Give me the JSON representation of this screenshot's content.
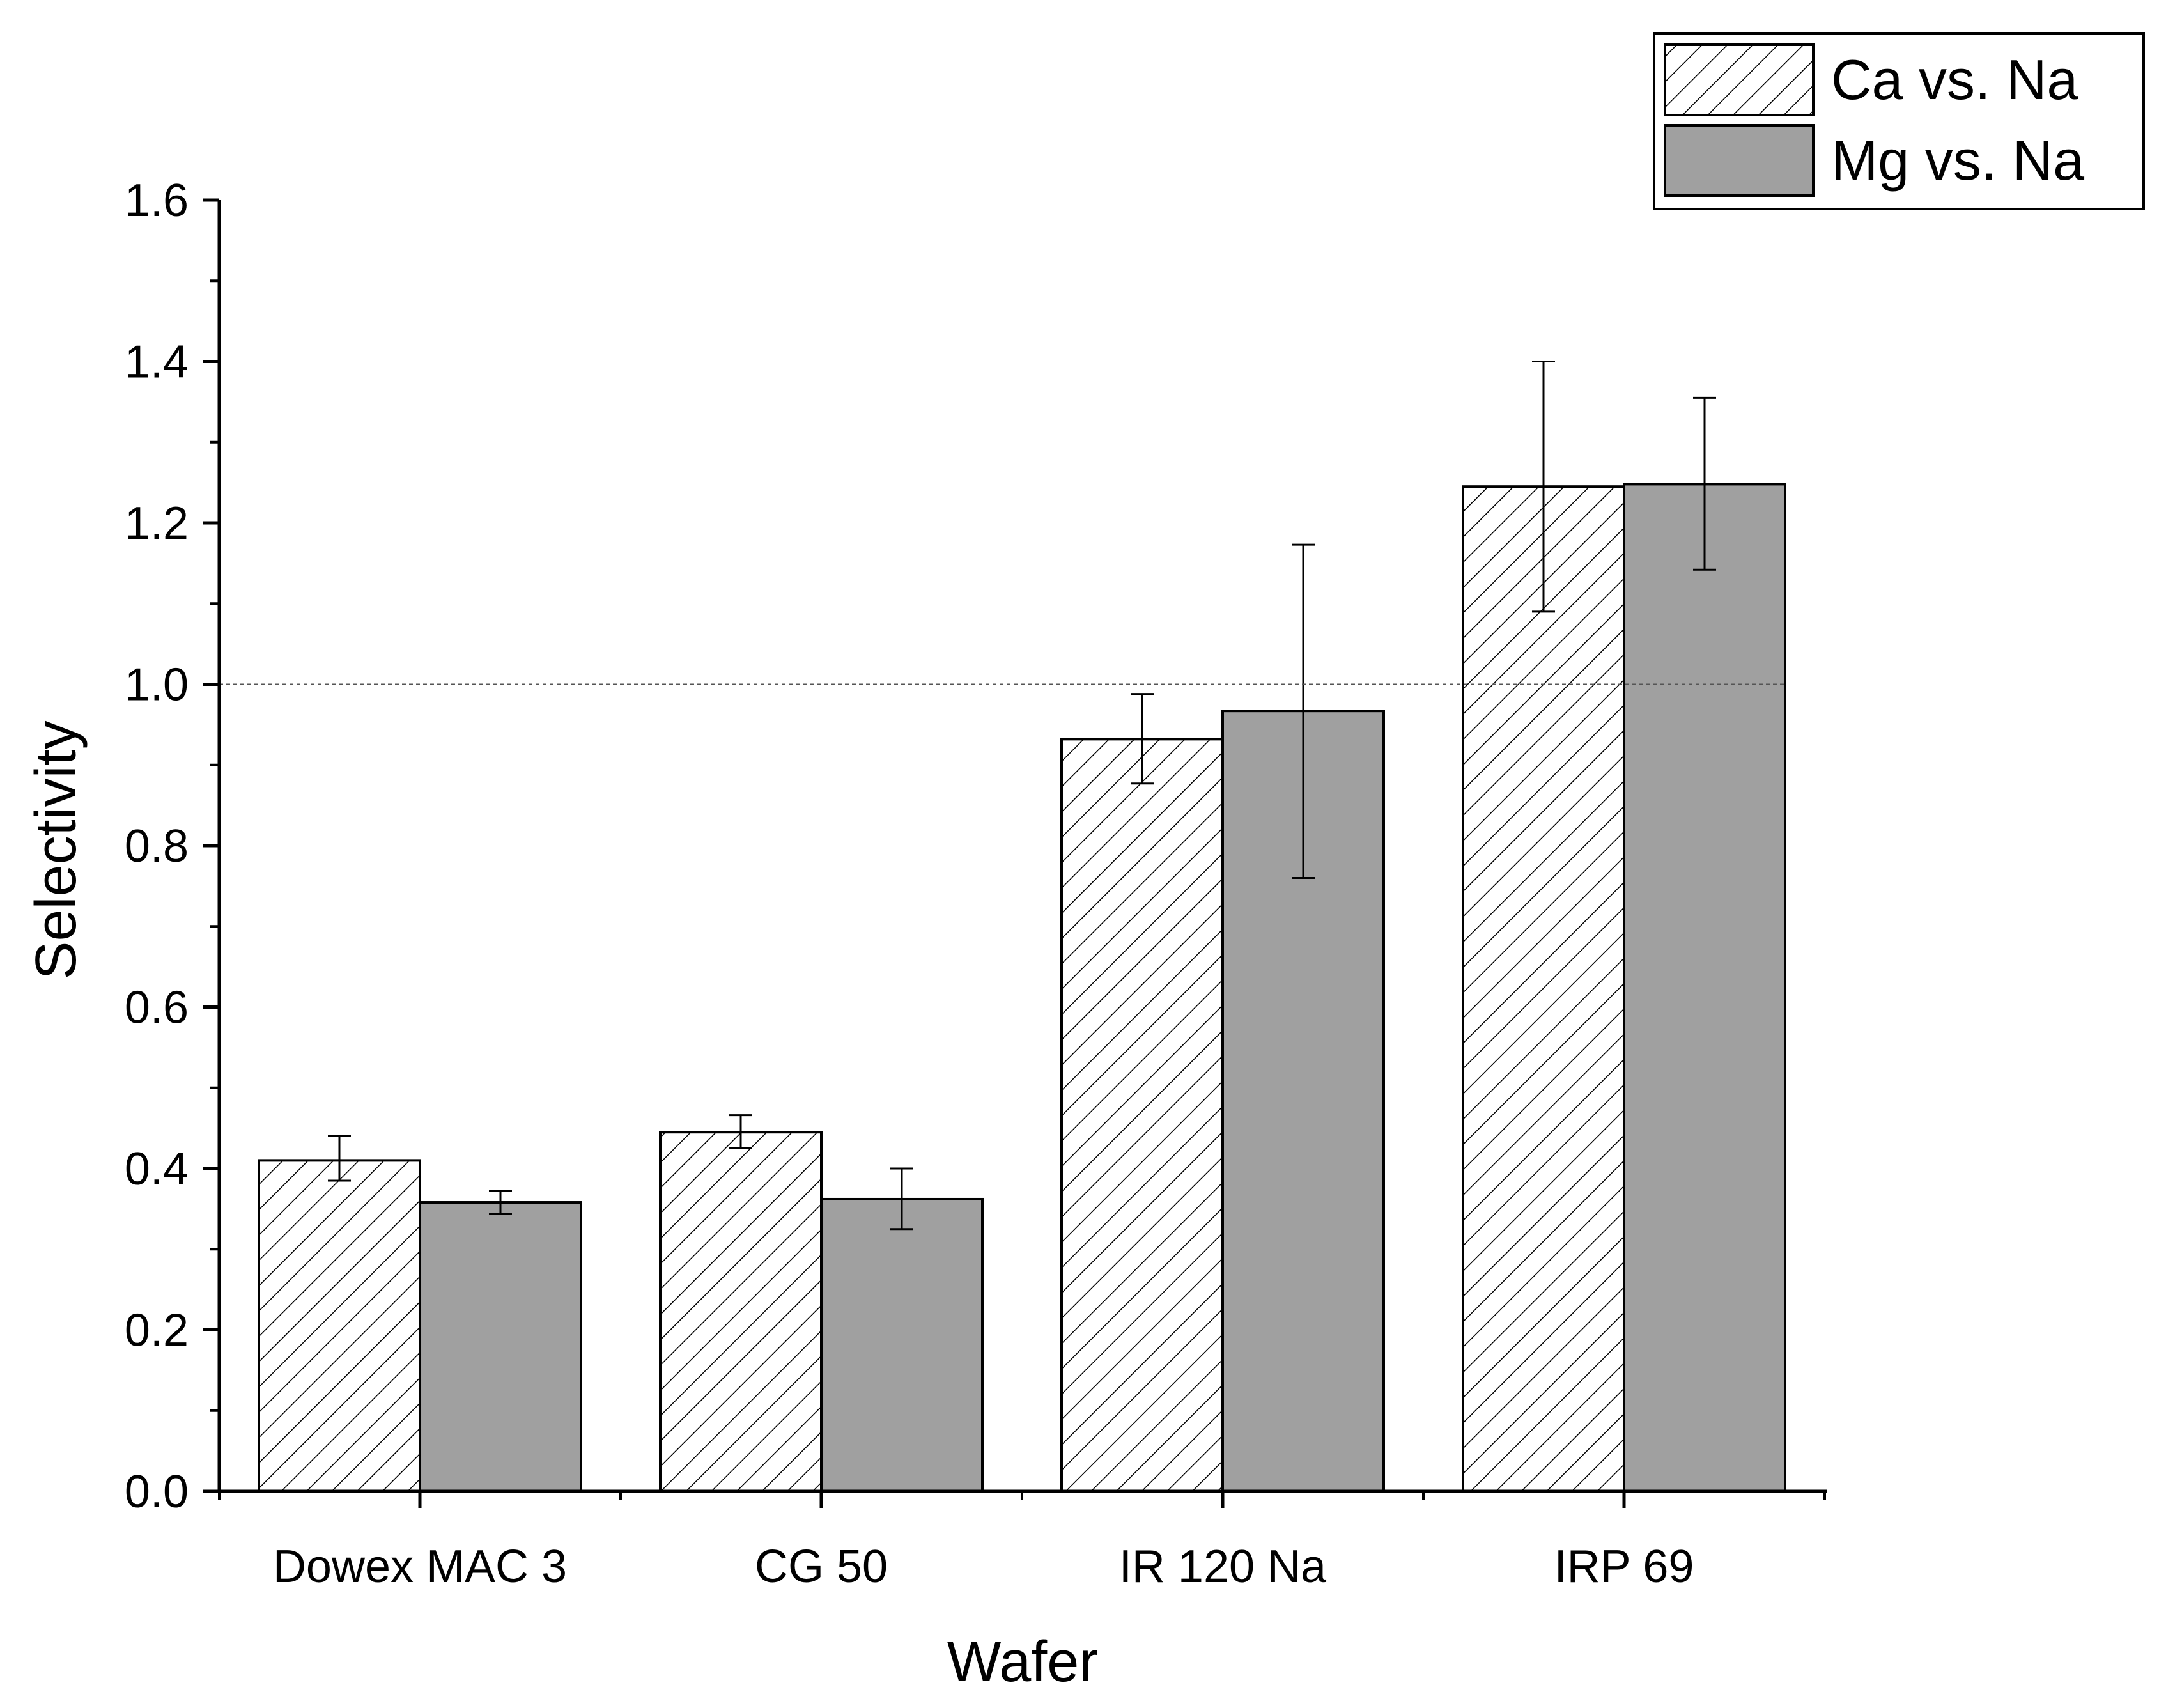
{
  "chart_data": {
    "type": "bar",
    "title": "",
    "xlabel": "Wafer",
    "ylabel": "Selectivity",
    "ylim": [
      0,
      1.6
    ],
    "yticks": [
      "0.0",
      "0.2",
      "0.4",
      "0.6",
      "0.8",
      "1.0",
      "1.2",
      "1.4",
      "1.6"
    ],
    "reference_line": 1.0,
    "categories": [
      "Dowex MAC 3",
      "CG 50",
      "IR 120 Na",
      "IRP 69"
    ],
    "series": [
      {
        "name": "Ca vs. Na",
        "pattern": "hatched",
        "values": [
          0.41,
          0.445,
          0.932,
          1.245
        ],
        "error_low": [
          0.385,
          0.425,
          0.877,
          1.09
        ],
        "error_high": [
          0.44,
          0.466,
          0.988,
          1.4
        ]
      },
      {
        "name": "Mg vs. Na",
        "pattern": "solid",
        "values": [
          0.358,
          0.362,
          0.967,
          1.248
        ],
        "error_low": [
          0.344,
          0.325,
          0.76,
          1.142
        ],
        "error_high": [
          0.372,
          0.4,
          1.173,
          1.355
        ]
      }
    ],
    "legend": {
      "position": "top-right"
    },
    "colors": {
      "hatched_fill": "#ffffff",
      "solid_fill": "#a0a0a0",
      "stroke": "#000000",
      "reference": "#555555"
    }
  }
}
